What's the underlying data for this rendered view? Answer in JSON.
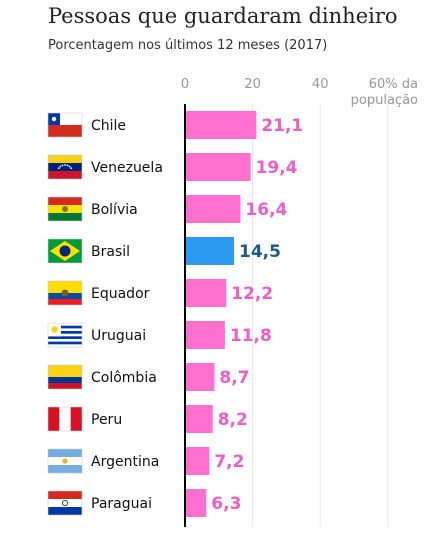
{
  "header": {
    "title": "Pessoas que guardaram dinheiro",
    "subtitle": "Porcentagem nos últimos 12 meses (2017)"
  },
  "chart_data": {
    "type": "bar",
    "orientation": "horizontal",
    "title": "Pessoas que guardaram dinheiro",
    "subtitle": "Porcentagem nos últimos 12 meses (2017)",
    "categories": [
      "Chile",
      "Venezuela",
      "Bolívia",
      "Brasil",
      "Equador",
      "Uruguai",
      "Colômbia",
      "Peru",
      "Argentina",
      "Paraguai"
    ],
    "values": [
      21.1,
      19.4,
      16.4,
      14.5,
      12.2,
      11.8,
      8.7,
      8.2,
      7.2,
      6.3
    ],
    "value_labels": [
      "21,1",
      "19,4",
      "16,4",
      "14,5",
      "12,2",
      "11,8",
      "8,7",
      "8,2",
      "7,2",
      "6,3"
    ],
    "xlim": [
      0,
      60
    ],
    "x_ticks": [
      0,
      20,
      40,
      60
    ],
    "x_tick_labels": [
      "0",
      "20",
      "40",
      "60% da"
    ],
    "x_tick_label_extra": "população",
    "grid": true,
    "highlight_category": "Brasil",
    "colors": {
      "default_bar": "#ff6fd0",
      "default_label": "#f05cc8",
      "highlight_bar": "#2b9af0",
      "highlight_label": "#1d5a8a",
      "gridline": "#e8e8e8",
      "axis": "#000000",
      "tick_label": "#999999"
    },
    "flags": [
      "flag-chile-icon",
      "flag-venezuela-icon",
      "flag-bolivia-icon",
      "flag-brasil-icon",
      "flag-equador-icon",
      "flag-uruguai-icon",
      "flag-colombia-icon",
      "flag-peru-icon",
      "flag-argentina-icon",
      "flag-paraguai-icon"
    ]
  }
}
